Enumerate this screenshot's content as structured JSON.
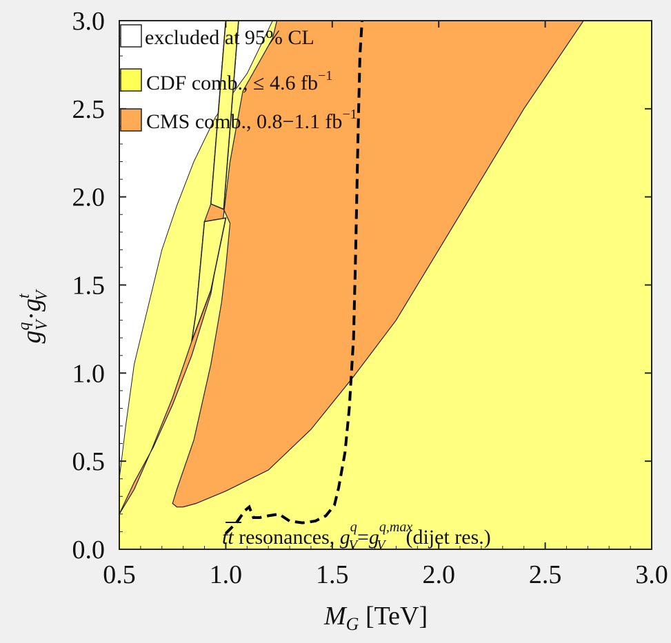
{
  "chart_data": {
    "type": "area",
    "xlim": [
      0.5,
      3.0
    ],
    "ylim": [
      0.0,
      3.0
    ],
    "x_ticks": [
      "0.5",
      "1.0",
      "1.5",
      "2.0",
      "2.5",
      "3.0"
    ],
    "y_ticks": [
      "0.0",
      "0.5",
      "1.0",
      "1.5",
      "2.0",
      "2.5",
      "3.0"
    ],
    "x_tick_values": [
      0.5,
      1.0,
      1.5,
      2.0,
      2.5,
      3.0
    ],
    "y_tick_values": [
      0.0,
      0.5,
      1.0,
      1.5,
      2.0,
      2.5,
      3.0
    ],
    "xlabel": {
      "main": "M",
      "sub": "G",
      "unit": " [TeV]"
    },
    "ylabel": {
      "g1": "g",
      "sup1": "q",
      "sub1": "V",
      "dot": "·",
      "g2": "g",
      "sup2": "t",
      "sub2": "V"
    },
    "legend": {
      "position": "top-left",
      "items": [
        {
          "label": "excluded at 95% CL",
          "color": "#ffffff"
        },
        {
          "label": "CDF comb., ≤ 4.6 fb",
          "sup": "−1",
          "color": "#ffff66"
        },
        {
          "label": "CMS comb., 0.8−1.1 fb",
          "sup": "−1",
          "color": "#ffaa55"
        }
      ]
    },
    "annotation": {
      "text1": "tt",
      "text2": " resonances, ",
      "g1": "g",
      "sup1": "q",
      "sub1": "V",
      "eq": "=",
      "g2": "g",
      "sup2": "q,max",
      "sub2": "V",
      "text3": "(dijet res.)"
    },
    "series": [
      {
        "name": "CDF comb., ≤ 4.6 fb−1",
        "color": "#ffff80",
        "polygon": [
          [
            0.5,
            0.0
          ],
          [
            3.0,
            0.0
          ],
          [
            3.0,
            3.0
          ],
          [
            1.22,
            3.0
          ],
          [
            1.2,
            2.95
          ],
          [
            1.1,
            2.7
          ],
          [
            0.95,
            2.45
          ],
          [
            0.85,
            2.2
          ],
          [
            0.77,
            1.95
          ],
          [
            0.7,
            1.7
          ],
          [
            0.64,
            1.4
          ],
          [
            0.57,
            1.05
          ],
          [
            0.53,
            0.7
          ],
          [
            0.5,
            0.4
          ]
        ]
      },
      {
        "name": "CDF comb. (upper strips)",
        "color": "#ffff80",
        "polygons": [
          [
            [
              0.93,
              1.96
            ],
            [
              1.0,
              3.0
            ],
            [
              1.06,
              3.0
            ],
            [
              0.99,
              1.93
            ]
          ],
          [
            [
              0.9,
              1.86
            ],
            [
              1.0,
              1.88
            ],
            [
              0.93,
              1.47
            ],
            [
              0.84,
              1.18
            ],
            [
              0.86,
              1.34
            ]
          ]
        ]
      },
      {
        "name": "CMS comb., 0.8−1.1 fb−1",
        "color": "#ffaa55",
        "polygon": [
          [
            0.5,
            0.2
          ],
          [
            0.57,
            0.38
          ],
          [
            0.66,
            0.58
          ],
          [
            0.75,
            0.82
          ],
          [
            0.84,
            1.1
          ],
          [
            0.93,
            1.45
          ],
          [
            0.98,
            1.8
          ],
          [
            1.02,
            2.2
          ],
          [
            1.08,
            2.6
          ],
          [
            1.22,
            2.9
          ],
          [
            1.24,
            3.0
          ],
          [
            2.68,
            3.0
          ],
          [
            2.4,
            2.5
          ],
          [
            2.2,
            2.1
          ],
          [
            2.0,
            1.7
          ],
          [
            1.8,
            1.3
          ],
          [
            1.6,
            0.98
          ],
          [
            1.4,
            0.68
          ],
          [
            1.2,
            0.45
          ],
          [
            1.0,
            0.33
          ],
          [
            0.86,
            0.26
          ],
          [
            0.8,
            0.24
          ],
          [
            0.77,
            0.24
          ],
          [
            0.75,
            0.26
          ],
          [
            0.77,
            0.34
          ],
          [
            0.85,
            0.62
          ],
          [
            0.93,
            1.05
          ],
          [
            0.98,
            1.4
          ],
          [
            1.0,
            1.6
          ],
          [
            1.02,
            1.85
          ],
          [
            0.99,
            1.93
          ],
          [
            1.06,
            3.0
          ],
          [
            1.0,
            3.0
          ],
          [
            0.93,
            1.96
          ],
          [
            0.9,
            1.86
          ],
          [
            0.86,
            1.34
          ],
          [
            0.84,
            1.18
          ],
          [
            0.75,
            0.86
          ],
          [
            0.65,
            0.56
          ],
          [
            0.57,
            0.34
          ],
          [
            0.5,
            0.2
          ]
        ]
      },
      {
        "name": "tt resonances dashed",
        "color": "#000000",
        "x": [
          1.0,
          1.05,
          1.09,
          1.11,
          1.13,
          1.16,
          1.2,
          1.25,
          1.3,
          1.36,
          1.42,
          1.47,
          1.51,
          1.53,
          1.56,
          1.58,
          1.6,
          1.61,
          1.62,
          1.63,
          1.64
        ],
        "y": [
          0.09,
          0.15,
          0.22,
          0.24,
          0.18,
          0.18,
          0.19,
          0.2,
          0.16,
          0.15,
          0.16,
          0.19,
          0.25,
          0.35,
          0.55,
          0.8,
          1.2,
          1.7,
          2.3,
          2.8,
          3.0
        ]
      }
    ],
    "grid": false
  }
}
